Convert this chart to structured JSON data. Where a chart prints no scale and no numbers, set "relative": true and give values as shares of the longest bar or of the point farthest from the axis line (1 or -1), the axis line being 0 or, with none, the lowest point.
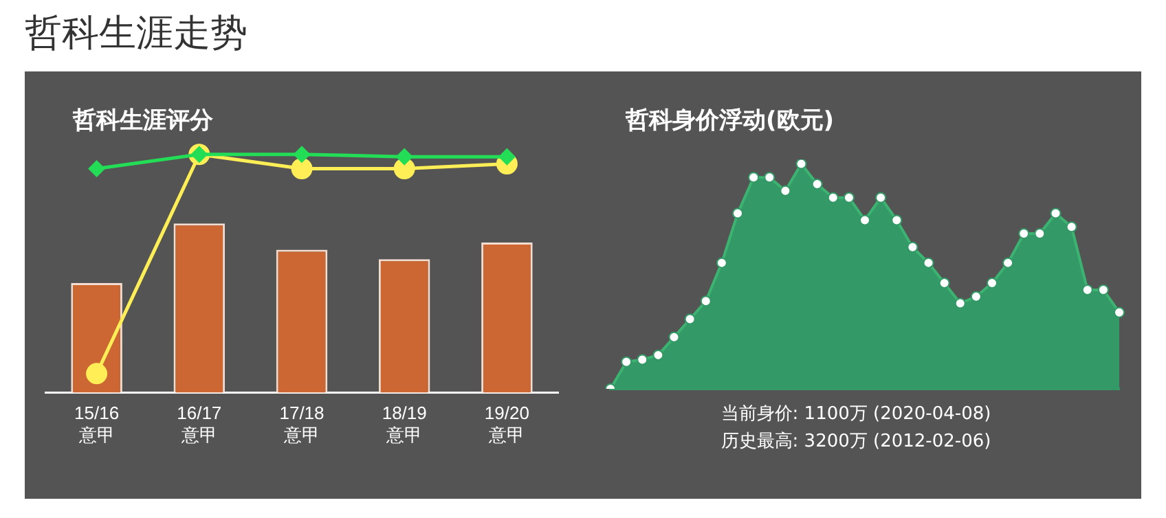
{
  "chart_data": [
    {
      "type": "other",
      "title": "哲科生涯走势"
    },
    {
      "type": "bar",
      "title": "哲科生涯评分",
      "relative": true,
      "categories": [
        "15/16\n意甲",
        "16/17\n意甲",
        "17/18\n意甲",
        "18/19\n意甲",
        "19/20\n意甲"
      ],
      "series": [
        {
          "type": "bar",
          "color": "#cc6633",
          "values": [
            0.46,
            0.71,
            0.6,
            0.56,
            0.63
          ]
        },
        {
          "type": "line",
          "color": "#22dd55",
          "marker": "diamond",
          "values": [
            0.94,
            1,
            1,
            0.99,
            0.99
          ]
        },
        {
          "type": "line",
          "color": "#ffee55",
          "marker": "circle",
          "values": [
            0.08,
            1,
            0.94,
            0.94,
            0.96
          ]
        }
      ]
    },
    {
      "type": "area",
      "title": "哲科身价浮动(欧元)",
      "relative": true,
      "marker": "circle",
      "categories": [
        null,
        null,
        null,
        null,
        null,
        null,
        null,
        null,
        null,
        null,
        null,
        null,
        null,
        null,
        null,
        null,
        null,
        null,
        null,
        null,
        null,
        null,
        null,
        null,
        null,
        null,
        null,
        null,
        null,
        null,
        null,
        null,
        null
      ],
      "series": [
        {
          "color": "#339966",
          "values": [
            0,
            0.12,
            0.13,
            0.15,
            0.23,
            0.31,
            0.39,
            0.56,
            0.78,
            0.94,
            0.94,
            0.88,
            1,
            0.91,
            0.85,
            0.85,
            0.75,
            0.85,
            0.75,
            0.63,
            0.56,
            0.47,
            0.38,
            0.41,
            0.47,
            0.56,
            0.69,
            0.69,
            0.78,
            0.72,
            0.44,
            0.44,
            0.34
          ]
        }
      ],
      "annotations": [
        "当前身价: 1100万 (2020-04-08)",
        "历史最高: 3200万 (2012-02-06)"
      ]
    }
  ]
}
